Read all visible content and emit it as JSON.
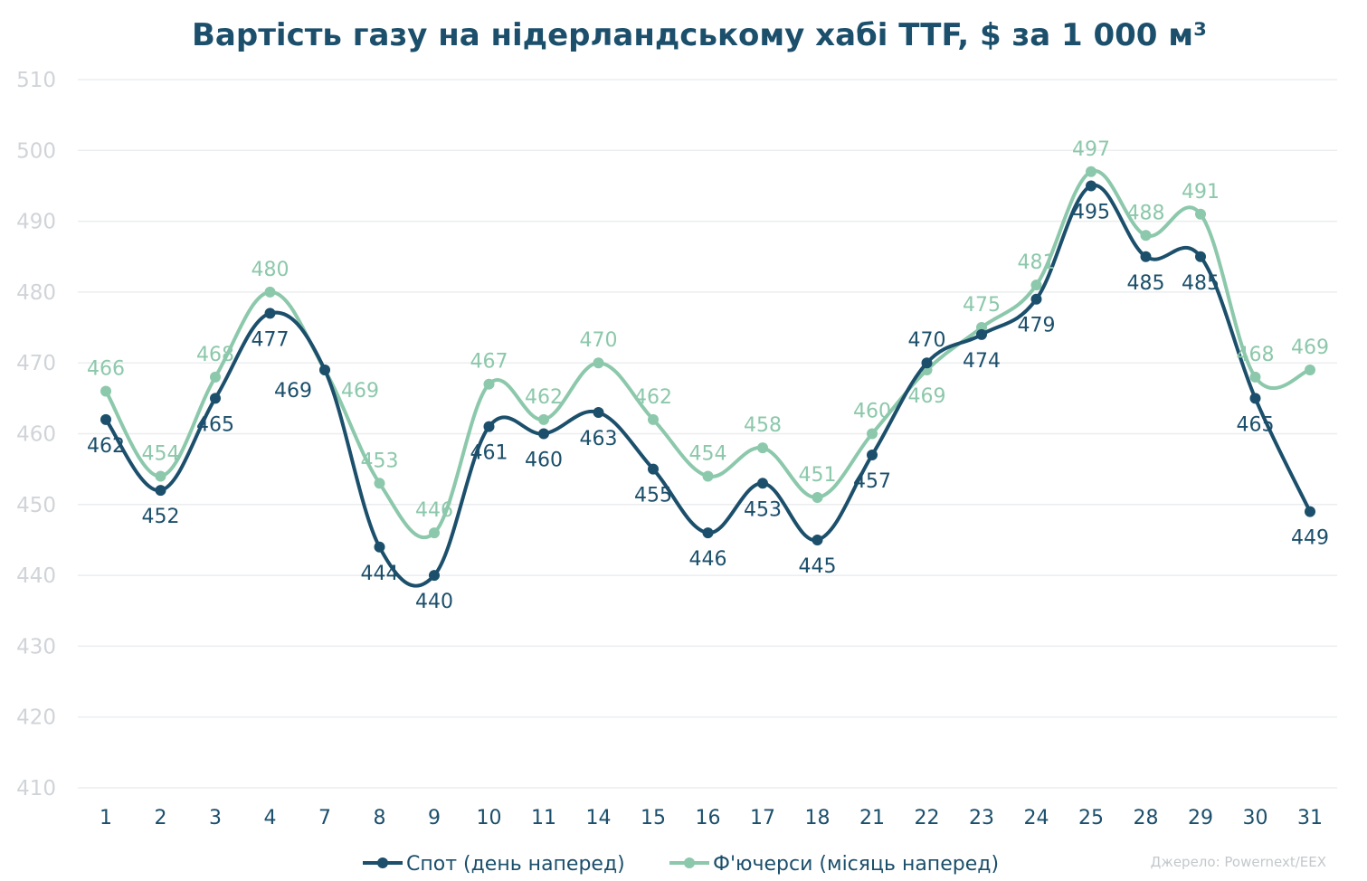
{
  "chart_data": {
    "type": "line",
    "title": "Вартість газу на нідерландському хабі TTF, $ за 1 000 м³",
    "xlabel": "",
    "ylabel": "",
    "categories": [
      "1",
      "2",
      "3",
      "4",
      "7",
      "8",
      "9",
      "10",
      "11",
      "14",
      "15",
      "16",
      "17",
      "18",
      "21",
      "22",
      "23",
      "24",
      "25",
      "28",
      "29",
      "30",
      "31"
    ],
    "yticks": [
      "510",
      "500",
      "490",
      "480",
      "470",
      "460",
      "450",
      "440",
      "430",
      "420",
      "410"
    ],
    "ylim": [
      410,
      510
    ],
    "grid": true,
    "legend_position": "bottom",
    "series": [
      {
        "name": "Спот (день наперед)",
        "color": "#1b4f6b",
        "values": [
          462,
          452,
          465,
          477,
          469,
          444,
          440,
          461,
          460,
          463,
          455,
          446,
          453,
          445,
          457,
          470,
          474,
          479,
          495,
          485,
          485,
          465,
          449
        ],
        "labels": [
          "462",
          "452",
          "465",
          "477",
          "469",
          "444",
          "440",
          "461",
          "460",
          "463",
          "455",
          "446",
          "453",
          "445",
          "457",
          "470",
          "474",
          "479",
          "495",
          "485",
          "485",
          "465",
          "449"
        ]
      },
      {
        "name": "Ф'ючерси (місяць наперед)",
        "color": "#8cc8ab",
        "values": [
          466,
          454,
          468,
          480,
          469,
          453,
          446,
          467,
          462,
          470,
          462,
          454,
          458,
          451,
          460,
          469,
          475,
          481,
          497,
          488,
          491,
          468,
          469
        ],
        "labels": [
          "466",
          "454",
          "468",
          "480",
          "469",
          "453",
          "446",
          "467",
          "462",
          "470",
          "462",
          "454",
          "458",
          "451",
          "460",
          "469",
          "475",
          "481",
          "497",
          "488",
          "491",
          "468",
          "469"
        ]
      }
    ]
  },
  "source_note": "Джерело: Powernext/EEX"
}
